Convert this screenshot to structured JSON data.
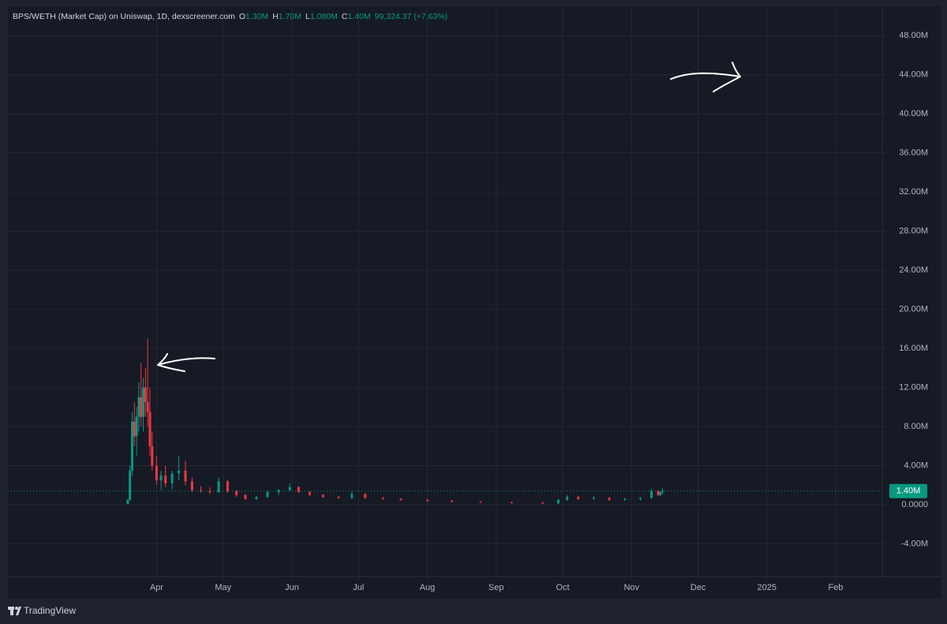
{
  "chart_data": {
    "type": "candlestick",
    "title": "BPS/WETH (Market Cap) on Uniswap, 1D, dexscreener.com",
    "ohlc": [
      {
        "label": "O",
        "value": "1.30M"
      },
      {
        "label": "H",
        "value": "1.70M"
      },
      {
        "label": "L",
        "value": "1.080M"
      },
      {
        "label": "C",
        "value": "1.40M"
      }
    ],
    "change": "99,324.37 (+7.63%)",
    "last_price": {
      "value": 1400000,
      "label": "1.40M"
    },
    "up_color": "#089981",
    "down_color": "#f23645",
    "grid": true,
    "x": [
      "2024-03-19",
      "2024-03-20",
      "2024-03-21",
      "2024-03-22",
      "2024-03-23",
      "2024-03-24",
      "2024-03-25",
      "2024-03-26",
      "2024-03-27",
      "2024-03-28",
      "2024-03-29",
      "2024-03-30",
      "2024-04-01",
      "2024-04-03",
      "2024-04-05",
      "2024-04-08",
      "2024-04-11",
      "2024-04-14",
      "2024-04-17",
      "2024-04-21",
      "2024-04-25",
      "2024-04-29",
      "2024-05-03",
      "2024-05-07",
      "2024-05-11",
      "2024-05-16",
      "2024-05-21",
      "2024-05-26",
      "2024-05-31",
      "2024-06-04",
      "2024-06-09",
      "2024-06-15",
      "2024-06-22",
      "2024-06-28",
      "2024-07-04",
      "2024-07-12",
      "2024-07-20",
      "2024-08-01",
      "2024-08-12",
      "2024-08-25",
      "2024-09-08",
      "2024-09-22",
      "2024-09-29",
      "2024-10-03",
      "2024-10-08",
      "2024-10-15",
      "2024-10-22",
      "2024-10-29",
      "2024-11-05",
      "2024-11-10",
      "2024-11-13",
      "2024-11-14",
      "2024-11-15"
    ],
    "open": [
      100000,
      500000,
      3500000,
      8500000,
      7000000,
      9000000,
      11000000,
      9000000,
      12000000,
      10500000,
      9500000,
      6000000,
      4000000,
      2500000,
      3000000,
      2200000,
      3200000,
      3500000,
      2400000,
      1500000,
      1400000,
      1300000,
      2400000,
      1400000,
      1000000,
      600000,
      800000,
      1300000,
      1500000,
      1800000,
      1300000,
      1000000,
      800000,
      700000,
      1100000,
      700000,
      600000,
      500000,
      400000,
      300000,
      250000,
      200000,
      150000,
      500000,
      800000,
      600000,
      700000,
      500000,
      600000,
      700000,
      1400000,
      1000000,
      1300000
    ],
    "high": [
      600000,
      4000000,
      9500000,
      10500000,
      10000000,
      12500000,
      14500000,
      13000000,
      14000000,
      17000000,
      12000000,
      7500000,
      5000000,
      3500000,
      4000000,
      3500000,
      5000000,
      4500000,
      2800000,
      1900000,
      1800000,
      2800000,
      2500000,
      1500000,
      1100000,
      900000,
      1500000,
      1600000,
      2200000,
      1900000,
      1400000,
      1100000,
      900000,
      1400000,
      1200000,
      800000,
      700000,
      600000,
      500000,
      400000,
      350000,
      300000,
      600000,
      1000000,
      900000,
      900000,
      800000,
      700000,
      800000,
      1600000,
      1500000,
      1400000,
      1700000
    ],
    "low": [
      50000,
      400000,
      3000000,
      6000000,
      5000000,
      7500000,
      8000000,
      7500000,
      9000000,
      8000000,
      5000000,
      3500000,
      2000000,
      1500000,
      1800000,
      1600000,
      2500000,
      2000000,
      1300000,
      1200000,
      1100000,
      1200000,
      1200000,
      800000,
      500000,
      500000,
      700000,
      1000000,
      1400000,
      1200000,
      900000,
      700000,
      600000,
      600000,
      600000,
      500000,
      400000,
      300000,
      250000,
      200000,
      150000,
      100000,
      100000,
      400000,
      500000,
      500000,
      400000,
      400000,
      400000,
      600000,
      900000,
      900000,
      1080000
    ],
    "close": [
      500000,
      3500000,
      8500000,
      7000000,
      9000000,
      11000000,
      9000000,
      12000000,
      10500000,
      9500000,
      6000000,
      4000000,
      2500000,
      3000000,
      2200000,
      3200000,
      3500000,
      2400000,
      1500000,
      1400000,
      1300000,
      2400000,
      1400000,
      1000000,
      600000,
      800000,
      1300000,
      1500000,
      1800000,
      1300000,
      1000000,
      800000,
      700000,
      1100000,
      700000,
      600000,
      500000,
      400000,
      300000,
      250000,
      200000,
      150000,
      500000,
      800000,
      600000,
      700000,
      500000,
      600000,
      700000,
      1400000,
      1000000,
      1300000,
      1400000
    ],
    "xlim": [
      "2024-01-25",
      "2025-02-22"
    ],
    "xticks": [
      {
        "value": "2024-04-01",
        "label": "Apr"
      },
      {
        "value": "2024-05-01",
        "label": "May"
      },
      {
        "value": "2024-06-01",
        "label": "Jun"
      },
      {
        "value": "2024-07-01",
        "label": "Jul"
      },
      {
        "value": "2024-08-01",
        "label": "Aug"
      },
      {
        "value": "2024-09-01",
        "label": "Sep"
      },
      {
        "value": "2024-10-01",
        "label": "Oct"
      },
      {
        "value": "2024-11-01",
        "label": "Nov"
      },
      {
        "value": "2024-12-01",
        "label": "Dec"
      },
      {
        "value": "2025-01-01",
        "label": "2025"
      },
      {
        "value": "2025-02-01",
        "label": "Feb"
      }
    ],
    "ylim": [
      -7350000,
      51000000
    ],
    "yticks": [
      {
        "value": -4000000,
        "label": "-4.00M"
      },
      {
        "value": 0,
        "label": "0.0000"
      },
      {
        "value": 4000000,
        "label": "4.00M"
      },
      {
        "value": 8000000,
        "label": "8.00M"
      },
      {
        "value": 12000000,
        "label": "12.00M"
      },
      {
        "value": 16000000,
        "label": "16.00M"
      },
      {
        "value": 20000000,
        "label": "20.00M"
      },
      {
        "value": 24000000,
        "label": "24.00M"
      },
      {
        "value": 28000000,
        "label": "28.00M"
      },
      {
        "value": 32000000,
        "label": "32.00M"
      },
      {
        "value": 36000000,
        "label": "36.00M"
      },
      {
        "value": 40000000,
        "label": "40.00M"
      },
      {
        "value": 44000000,
        "label": "44.00M"
      },
      {
        "value": 48000000,
        "label": "48.00M"
      }
    ],
    "footer": "TradingView"
  }
}
